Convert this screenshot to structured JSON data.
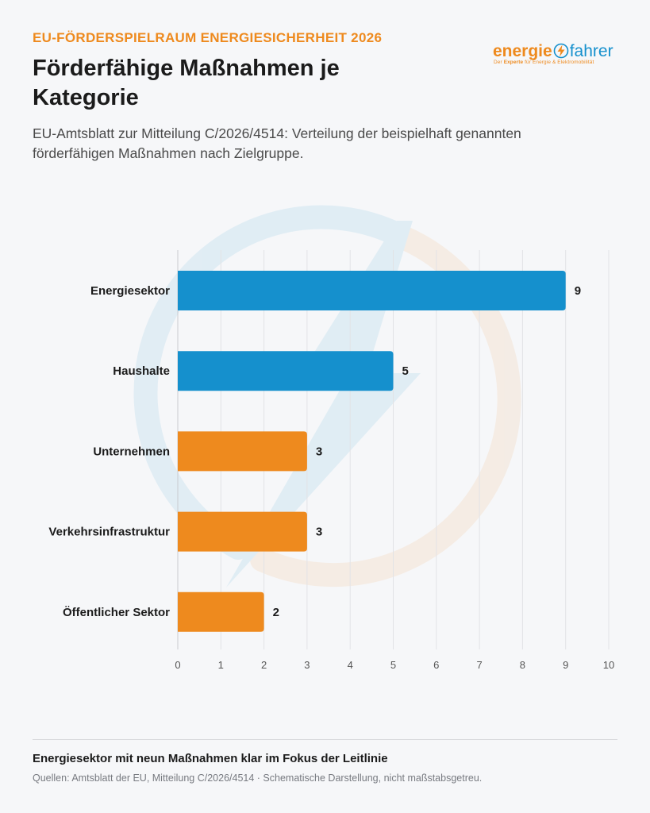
{
  "header": {
    "kicker": "EU-FÖRDERSPIELRAUM ENERGIESICHERHEIT 2026",
    "title": "Förderfähige Maßnahmen je Kategorie",
    "subtitle": "EU-Amtsblatt zur Mitteilung C/2026/4514: Verteilung der beispielhaft genannten förderfähigen Maßnahmen nach Zielgruppe."
  },
  "logo": {
    "name_part1": "energie",
    "name_part2": "fahrer",
    "tagline_pre": "Der ",
    "tagline_bold": "Experte",
    "tagline_post": " für Energie & Elektromobilität",
    "icon": "lightning-bolt-icon"
  },
  "chart_data": {
    "type": "bar",
    "orientation": "horizontal",
    "categories": [
      "Energiesektor",
      "Haushalte",
      "Unternehmen",
      "Verkehrsinfrastruktur",
      "Öffentlicher Sektor"
    ],
    "values": [
      9,
      5,
      3,
      3,
      2
    ],
    "colors": [
      "#1590cd",
      "#1590cd",
      "#ee8a1e",
      "#ee8a1e",
      "#ee8a1e"
    ],
    "xlim": [
      0,
      10
    ],
    "xticks": [
      0,
      1,
      2,
      3,
      4,
      5,
      6,
      7,
      8,
      9,
      10
    ],
    "grid": true,
    "data_labels": true
  },
  "footer": {
    "headline": "Energiesektor mit neun Maßnahmen klar im Fokus der Leitlinie",
    "source": "Quellen: Amtsblatt der EU, Mitteilung C/2026/4514 · Schematische Darstellung, nicht maßstabsgetreu."
  },
  "colors": {
    "accent_orange": "#ee8a1e",
    "accent_blue": "#1590cd",
    "background": "#f6f7f9"
  }
}
